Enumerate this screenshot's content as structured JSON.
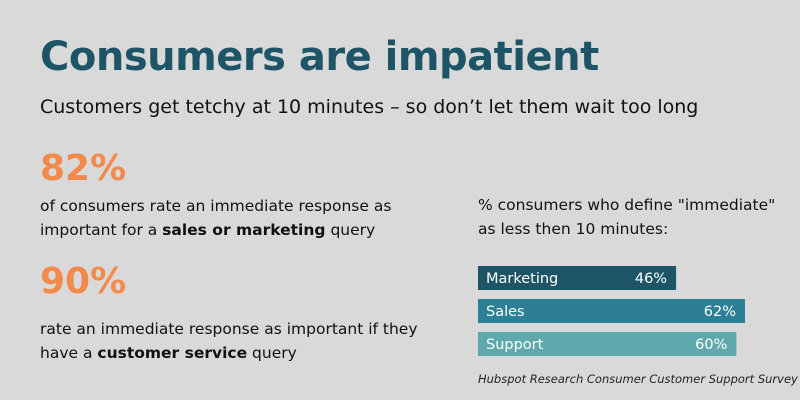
{
  "header": {
    "title": "Consumers are impatient",
    "subtitle": "Customers get tetchy at 10 minutes – so don’t let them wait too long"
  },
  "stats": [
    {
      "value": "82%",
      "text_before": "of consumers rate an immediate response as important for a ",
      "emphasis": "sales or marketing",
      "text_after": " query"
    },
    {
      "value": "90%",
      "text_before": "rate an immediate response as important if they have a ",
      "emphasis": "customer service",
      "text_after": " query"
    }
  ],
  "chart_caption": "% consumers who define \"immediate\" as less then 10 minutes:",
  "source": "Hubspot Research Consumer Customer Support Survey",
  "colors": {
    "background": "#d9d9d9",
    "title": "#1e5566",
    "stat_accent": "#f28a4c",
    "bar_marketing": "#1e5566",
    "bar_sales": "#2c7f94",
    "bar_support": "#5fa9ad",
    "bar_text": "#ffffff"
  },
  "chart_data": {
    "type": "bar",
    "orientation": "horizontal",
    "categories": [
      "Marketing",
      "Sales",
      "Support"
    ],
    "values": [
      46,
      62,
      60
    ],
    "value_labels": [
      "46%",
      "62%",
      "60%"
    ],
    "title": "% consumers who define \"immediate\" as less then 10 minutes:",
    "xlabel": "",
    "ylabel": "",
    "xlim": [
      0,
      62
    ],
    "grid": false,
    "legend": "none"
  }
}
